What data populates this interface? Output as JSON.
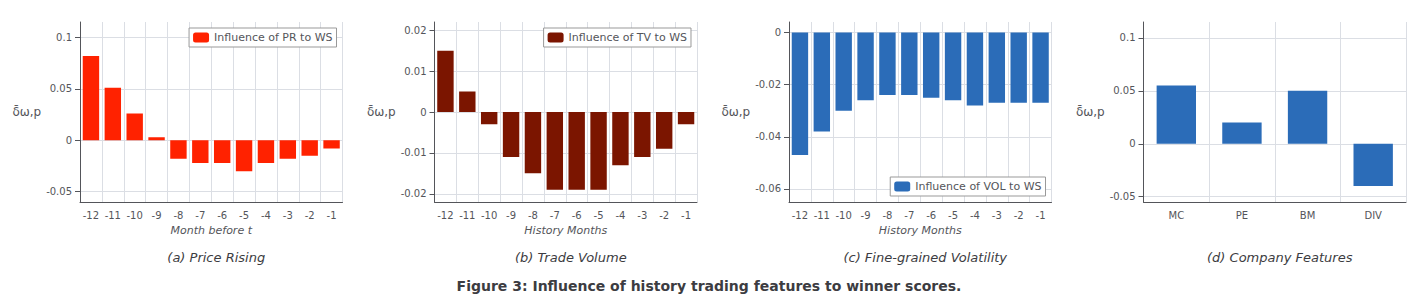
{
  "title": "Figure 3: Influence of history trading features to winner scores.",
  "chart_data": [
    {
      "type": "bar",
      "title": "(a) Price Rising",
      "xlabel": "Month before t",
      "ylabel": "δ̄ω,p",
      "categories": [
        "-12",
        "-11",
        "-10",
        "-9",
        "-8",
        "-7",
        "-6",
        "-5",
        "-4",
        "-3",
        "-2",
        "-1"
      ],
      "series": [
        {
          "name": "Influence of PR to WS",
          "color": "#FF2200",
          "values": [
            0.082,
            0.051,
            0.026,
            0.003,
            -0.018,
            -0.022,
            -0.022,
            -0.03,
            -0.022,
            -0.018,
            -0.015,
            -0.008
          ]
        }
      ],
      "ylim": [
        -0.06,
        0.115
      ],
      "yticks": [
        -0.05,
        0,
        0.05,
        0.1
      ],
      "grid": true,
      "legend": "upper right"
    },
    {
      "type": "bar",
      "title": "(b) Trade Volume",
      "xlabel": "History Months",
      "ylabel": "δ̄ω,p",
      "categories": [
        "-12",
        "-11",
        "-10",
        "-9",
        "-8",
        "-7",
        "-6",
        "-5",
        "-4",
        "-3",
        "-2",
        "-1"
      ],
      "series": [
        {
          "name": "Influence of TV to WS",
          "color": "#7B1500",
          "values": [
            0.015,
            0.005,
            -0.003,
            -0.011,
            -0.015,
            -0.019,
            -0.019,
            -0.019,
            -0.013,
            -0.011,
            -0.009,
            -0.003
          ]
        }
      ],
      "ylim": [
        -0.022,
        0.022
      ],
      "yticks": [
        -0.02,
        -0.01,
        0,
        0.01,
        0.02
      ],
      "grid": true,
      "legend": "upper right"
    },
    {
      "type": "bar",
      "title": "(c) Fine-grained Volatility",
      "xlabel": "History Months",
      "ylabel": "δ̄ω,p",
      "categories": [
        "-12",
        "-11",
        "-10",
        "-9",
        "-8",
        "-7",
        "-6",
        "-5",
        "-4",
        "-3",
        "-2",
        "-1"
      ],
      "series": [
        {
          "name": "Influence of VOL to WS",
          "color": "#2B6CB8",
          "values": [
            -0.047,
            -0.038,
            -0.03,
            -0.026,
            -0.024,
            -0.024,
            -0.025,
            -0.026,
            -0.028,
            -0.027,
            -0.027,
            -0.027
          ]
        }
      ],
      "ylim": [
        -0.065,
        0.004
      ],
      "yticks": [
        -0.06,
        -0.04,
        -0.02,
        0
      ],
      "grid": true,
      "legend": "lower right"
    },
    {
      "type": "bar",
      "title": "(d) Company Features",
      "ylabel": "δ̄ω,p",
      "categories": [
        "MC",
        "PE",
        "BM",
        "DIV"
      ],
      "values": [
        0.055,
        0.02,
        0.05,
        -0.04
      ],
      "color": "#2B6CB8",
      "ylim": [
        -0.055,
        0.115
      ],
      "yticks": [
        -0.05,
        0,
        0.05,
        0.1
      ],
      "grid": true
    }
  ]
}
